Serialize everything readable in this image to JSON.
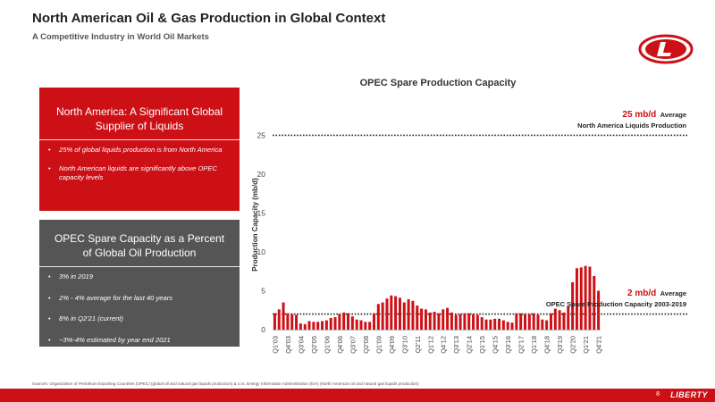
{
  "header": {
    "title": "North American Oil & Gas Production in Global Context",
    "subtitle": "A Competitive Industry in World Oil Markets"
  },
  "logo": {
    "icon": "liberty-logo-icon",
    "color": "#cc1016"
  },
  "panel_na": {
    "heading": "North America: A Significant Global Supplier of Liquids",
    "bullets": [
      "25% of global liquids production is from North America",
      "North American liquids are significantly above OPEC capacity levels"
    ],
    "color": "#cc1016"
  },
  "panel_opec": {
    "heading": "OPEC Spare Capacity as a Percent of Global Oil Production",
    "bullets": [
      "3% in 2019",
      "2% - 4% average for the last 40 years",
      "8% in Q2'21 (current)",
      "~3%-4% estimated by year end 2021"
    ],
    "color": "#555555"
  },
  "annotations": {
    "top_value": "25 mb/d",
    "top_label": "Average",
    "top_desc": "North America Liquids Production",
    "bottom_value": "2 mb/d",
    "bottom_label": "Average",
    "bottom_desc": "OPEC Spare Production Capacity 2003-2019"
  },
  "chart_data": {
    "type": "bar",
    "title": "OPEC Spare Production Capacity",
    "xlabel": "",
    "ylabel": "Production Capacity (mb/d)",
    "ylim": [
      0,
      27
    ],
    "yticks": [
      0,
      5,
      10,
      15,
      20,
      25
    ],
    "bar_color": "#cc1016",
    "grid": false,
    "tick_labels": [
      "Q1'03",
      "Q4'03",
      "Q3'04",
      "Q2'05",
      "Q1'06",
      "Q4'06",
      "Q3'07",
      "Q2'08",
      "Q1'09",
      "Q4'09",
      "Q3'10",
      "Q2'11",
      "Q1'12",
      "Q4'12",
      "Q3'13",
      "Q2'14",
      "Q1'15",
      "Q4'15",
      "Q3'16",
      "Q2'17",
      "Q1'18",
      "Q4'18",
      "Q3'19",
      "Q2'20",
      "Q1'21",
      "Q4'21"
    ],
    "categories": [
      "Q1'03",
      "Q2'03",
      "Q3'03",
      "Q4'03",
      "Q1'04",
      "Q2'04",
      "Q3'04",
      "Q4'04",
      "Q1'05",
      "Q2'05",
      "Q3'05",
      "Q4'05",
      "Q1'06",
      "Q2'06",
      "Q3'06",
      "Q4'06",
      "Q1'07",
      "Q2'07",
      "Q3'07",
      "Q4'07",
      "Q1'08",
      "Q2'08",
      "Q3'08",
      "Q4'08",
      "Q1'09",
      "Q2'09",
      "Q3'09",
      "Q4'09",
      "Q1'10",
      "Q2'10",
      "Q3'10",
      "Q4'10",
      "Q1'11",
      "Q2'11",
      "Q3'11",
      "Q4'11",
      "Q1'12",
      "Q2'12",
      "Q3'12",
      "Q4'12",
      "Q1'13",
      "Q2'13",
      "Q3'13",
      "Q4'13",
      "Q1'14",
      "Q2'14",
      "Q3'14",
      "Q4'14",
      "Q1'15",
      "Q2'15",
      "Q3'15",
      "Q4'15",
      "Q1'16",
      "Q2'16",
      "Q3'16",
      "Q4'16",
      "Q1'17",
      "Q2'17",
      "Q3'17",
      "Q4'17",
      "Q1'18",
      "Q2'18",
      "Q3'18",
      "Q4'18",
      "Q1'19",
      "Q2'19",
      "Q3'19",
      "Q4'19",
      "Q1'20",
      "Q2'20",
      "Q3'20",
      "Q4'20",
      "Q1'21",
      "Q2'21",
      "Q3'21",
      "Q4'21"
    ],
    "values": [
      2.1,
      2.6,
      3.5,
      2.1,
      2.0,
      1.9,
      0.8,
      0.7,
      1.1,
      1.0,
      1.0,
      1.1,
      1.2,
      1.5,
      1.6,
      2.0,
      2.2,
      2.1,
      1.7,
      1.3,
      1.2,
      1.0,
      1.0,
      2.1,
      3.3,
      3.5,
      4.0,
      4.4,
      4.3,
      4.1,
      3.5,
      3.9,
      3.7,
      3.1,
      2.7,
      2.6,
      2.2,
      2.3,
      2.1,
      2.6,
      2.8,
      2.2,
      1.9,
      2.0,
      2.1,
      2.1,
      2.0,
      1.9,
      1.6,
      1.3,
      1.3,
      1.4,
      1.4,
      1.2,
      1.0,
      0.9,
      2.1,
      2.1,
      2.0,
      2.0,
      2.1,
      1.9,
      1.3,
      1.2,
      2.1,
      2.7,
      2.5,
      2.2,
      3.0,
      6.1,
      7.9,
      8.0,
      8.2,
      8.1,
      6.9,
      5.0
    ],
    "reference_lines": [
      {
        "value": 25,
        "style": "dotted"
      },
      {
        "value": 2,
        "style": "dotted"
      }
    ]
  },
  "footer": {
    "sources": "Sources: Organization of Petroleum Exporting Countries (OPEC) (global oil and natural gas liquids production) & U.S. Energy Information Administration (EIA) (North American oil and natural gas liquids production)",
    "page": "8",
    "brand": "LIBERTY",
    "bar_color": "#cc1016"
  }
}
